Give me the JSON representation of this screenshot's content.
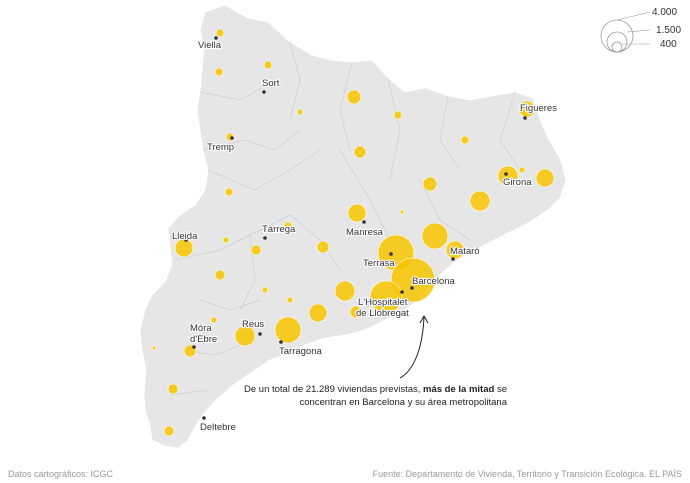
{
  "legend": {
    "values": [
      4000,
      1500,
      400
    ],
    "labels": [
      "4.000",
      "1.500",
      "400"
    ]
  },
  "cities": [
    {
      "id": "viella",
      "name": "Viella"
    },
    {
      "id": "sort",
      "name": "Sort"
    },
    {
      "id": "tremp",
      "name": "Tremp"
    },
    {
      "id": "figueres",
      "name": "Figueres"
    },
    {
      "id": "girona",
      "name": "Girona"
    },
    {
      "id": "lleida",
      "name": "Lleida"
    },
    {
      "id": "tarrega",
      "name": "Tàrrega"
    },
    {
      "id": "manresa",
      "name": "Manresa"
    },
    {
      "id": "terrasa",
      "name": "Terrasa"
    },
    {
      "id": "mataro",
      "name": "Mataró"
    },
    {
      "id": "barcelona",
      "name": "Barcelona"
    },
    {
      "id": "hospitalet",
      "name": "L'Hospitalet de Llobregat"
    },
    {
      "id": "mora",
      "name": "Móra d'Ebre"
    },
    {
      "id": "reus",
      "name": "Reus"
    },
    {
      "id": "tarragona",
      "name": "Tarragona"
    },
    {
      "id": "deltebre",
      "name": "Deltebre"
    }
  ],
  "annotation": {
    "line1_normal": "De un total de 21.289 viviendas previstas, ",
    "line1_bold": "más de la mitad",
    "line1_end": " se",
    "line2": "concentran en Barcelona y su área metropolitana"
  },
  "footer": {
    "left": "Datos cartográficos: ICGC",
    "right": "Fuente: Departamento de Vivienda, Territorio y Transición Ecológica. EL PAÍS"
  },
  "colors": {
    "bubble": "#f6c400",
    "land": "#e6e6e6",
    "text": "#333333",
    "muted": "#9a9a9a"
  }
}
